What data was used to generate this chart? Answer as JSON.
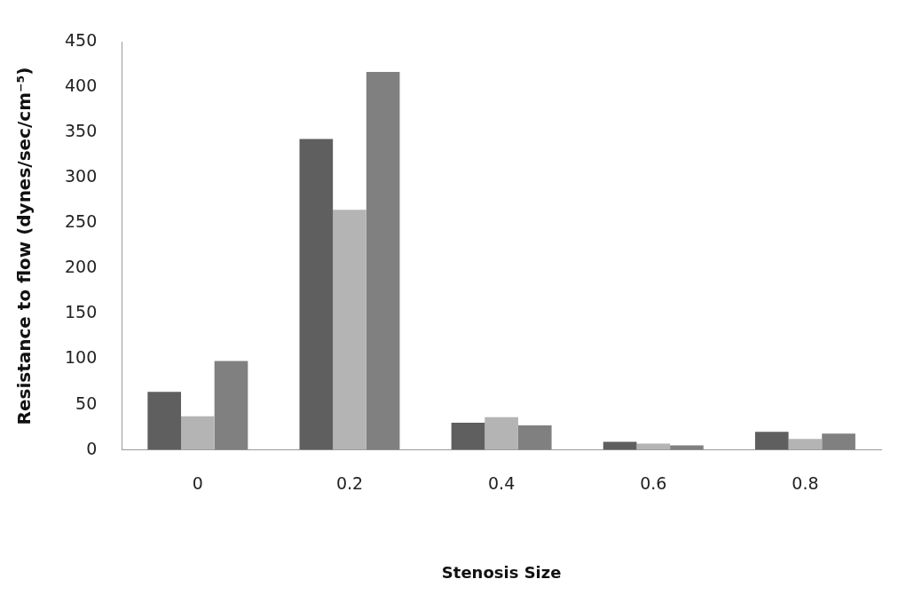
{
  "chart_data": {
    "type": "bar",
    "xlabel": "Stenosis Size",
    "ylabel": "Resistance to flow (dynes/sec/cm⁻⁵)",
    "categories": [
      "0",
      "0.2",
      "0.4",
      "0.6",
      "0.8"
    ],
    "series": [
      {
        "color": "#5f5f5f",
        "values": [
          64,
          343,
          30,
          9,
          20
        ]
      },
      {
        "color": "#b4b4b4",
        "values": [
          37,
          265,
          36,
          7,
          12
        ]
      },
      {
        "color": "#808080",
        "values": [
          98,
          417,
          27,
          5,
          18
        ]
      }
    ],
    "ylim": [
      0,
      450
    ],
    "yticks": [
      0,
      50,
      100,
      150,
      200,
      250,
      300,
      350,
      400,
      450
    ],
    "grid": false,
    "legend": false
  }
}
